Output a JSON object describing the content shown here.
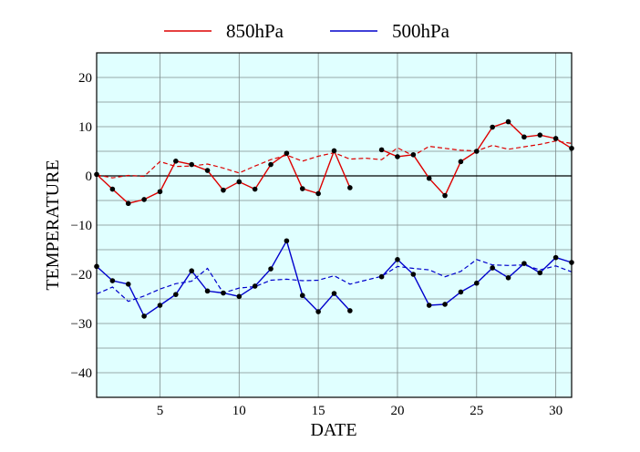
{
  "chart_data": {
    "type": "line",
    "xlabel": "DATE",
    "ylabel": "TEMPERATURE",
    "xlim": [
      1,
      31
    ],
    "ylim": [
      -45,
      25
    ],
    "xticks": [
      5,
      10,
      15,
      20,
      25,
      30
    ],
    "yticks": [
      -40,
      -30,
      -20,
      -10,
      0,
      10,
      20
    ],
    "grid": true,
    "zero_line": true,
    "background": "#e0ffff",
    "legend_position": "top-center",
    "x": [
      1,
      2,
      3,
      4,
      5,
      6,
      7,
      8,
      9,
      10,
      11,
      12,
      13,
      14,
      15,
      16,
      17,
      18,
      19,
      20,
      21,
      22,
      23,
      24,
      25,
      26,
      27,
      28,
      29,
      30,
      31
    ],
    "series": [
      {
        "name": "850hPa",
        "color": "#dd0000",
        "values": [
          0.3,
          -2.7,
          -5.6,
          -4.8,
          -3.2,
          3.0,
          2.3,
          1.1,
          -2.9,
          -1.2,
          -2.7,
          2.3,
          4.6,
          -2.6,
          -3.6,
          5.1,
          -2.4,
          null,
          5.3,
          3.9,
          4.3,
          -0.5,
          -4.0,
          2.9,
          5.0,
          9.9,
          11.0,
          7.9,
          8.3,
          7.6,
          5.6
        ],
        "normal": [
          0.2,
          -0.4,
          0.1,
          -0.1,
          2.9,
          1.9,
          2.0,
          2.4,
          1.6,
          0.6,
          2.0,
          3.3,
          4.2,
          3.0,
          4.0,
          4.7,
          3.4,
          3.6,
          3.3,
          5.7,
          4.1,
          6.0,
          5.6,
          5.2,
          5.1,
          6.2,
          5.4,
          5.9,
          6.4,
          7.1,
          6.6
        ]
      },
      {
        "name": "500hPa",
        "color": "#0000cc",
        "values": [
          -18.4,
          -21.3,
          -22.0,
          -28.5,
          -26.3,
          -24.1,
          -19.3,
          -23.4,
          -23.8,
          -24.5,
          -22.4,
          -18.9,
          -13.2,
          -24.3,
          -27.6,
          -23.9,
          -27.4,
          null,
          -20.5,
          -17.0,
          -20.0,
          -26.3,
          -26.1,
          -23.6,
          -21.8,
          -18.7,
          -20.7,
          -17.8,
          -19.7,
          -16.6,
          -17.6
        ],
        "normal": [
          -24.0,
          -22.6,
          -25.5,
          -24.4,
          -23.0,
          -21.9,
          -21.4,
          -18.8,
          -23.8,
          -22.8,
          -22.5,
          -21.2,
          -21.0,
          -21.3,
          -21.2,
          -20.3,
          -22.0,
          -21.2,
          -20.4,
          -18.4,
          -18.8,
          -19.1,
          -20.5,
          -19.4,
          -17.0,
          -18.1,
          -18.2,
          -18.1,
          -19.1,
          -18.3,
          -19.5
        ]
      }
    ]
  }
}
